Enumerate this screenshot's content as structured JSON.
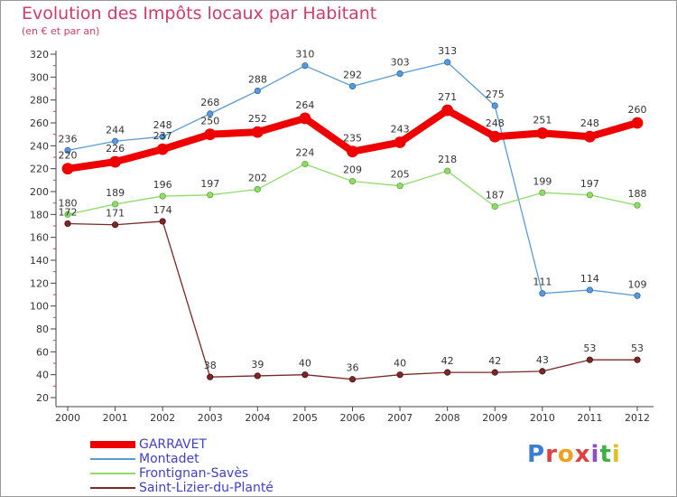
{
  "title": "Evolution des Impôts locaux par Habitant",
  "subtitle": "(en € et par an)",
  "logo": {
    "text": "Proxiti",
    "letters": [
      "P",
      "r",
      "o",
      "x",
      "i",
      "t",
      "i"
    ],
    "colors": [
      "#3a7fd0",
      "#e04040",
      "#f0a020",
      "#e04040",
      "#8a50c0",
      "#40b040",
      "#e0c020"
    ]
  },
  "chart_data": {
    "type": "line",
    "title": "Evolution des Impôts locaux par Habitant",
    "subtitle": "(en € et par an)",
    "x": [
      "2000",
      "2001",
      "2002",
      "2003",
      "2004",
      "2005",
      "2006",
      "2007",
      "2008",
      "2009",
      "2010",
      "2011",
      "2012"
    ],
    "ylim": [
      20,
      320
    ],
    "yticks": [
      20,
      40,
      60,
      80,
      100,
      120,
      140,
      160,
      180,
      200,
      220,
      240,
      260,
      280,
      300,
      320
    ],
    "grid": false,
    "legend": "bottom-left",
    "series": [
      {
        "name": "GARRAVET",
        "color": "#ee0000",
        "values": [
          220,
          226,
          237,
          250,
          252,
          264,
          235,
          243,
          271,
          248,
          251,
          248,
          260
        ],
        "labels": [
          "220",
          "226",
          "237",
          "250",
          "252",
          "264",
          "235",
          "243",
          "271",
          "248",
          "251",
          "248",
          "260"
        ]
      },
      {
        "name": "Montadet",
        "color": "#5a9ad6",
        "values": [
          236,
          244,
          248,
          268,
          288,
          310,
          292,
          303,
          313,
          275,
          111,
          114,
          109
        ],
        "labels": [
          "236",
          "244",
          "248",
          "268",
          "288",
          "310",
          "292",
          "303",
          "313",
          "275",
          "111",
          "114",
          "109"
        ]
      },
      {
        "name": "Frontignan-Savès",
        "color": "#8fdc6a",
        "values": [
          180,
          189,
          196,
          197,
          202,
          224,
          209,
          205,
          218,
          187,
          199,
          197,
          188
        ],
        "labels": [
          "180",
          "189",
          "196",
          "197",
          "202",
          "224",
          "209",
          "205",
          "218",
          "187",
          "199",
          "197",
          "188"
        ]
      },
      {
        "name": "Saint-Lizier-du-Planté",
        "color": "#7a2828",
        "values": [
          172,
          171,
          174,
          38,
          39,
          40,
          36,
          40,
          42,
          42,
          43,
          53,
          53
        ],
        "labels": [
          "172",
          "171",
          "174",
          "38",
          "39",
          "40",
          "36",
          "40",
          "42",
          "42",
          "43",
          "53",
          "53"
        ]
      }
    ]
  }
}
